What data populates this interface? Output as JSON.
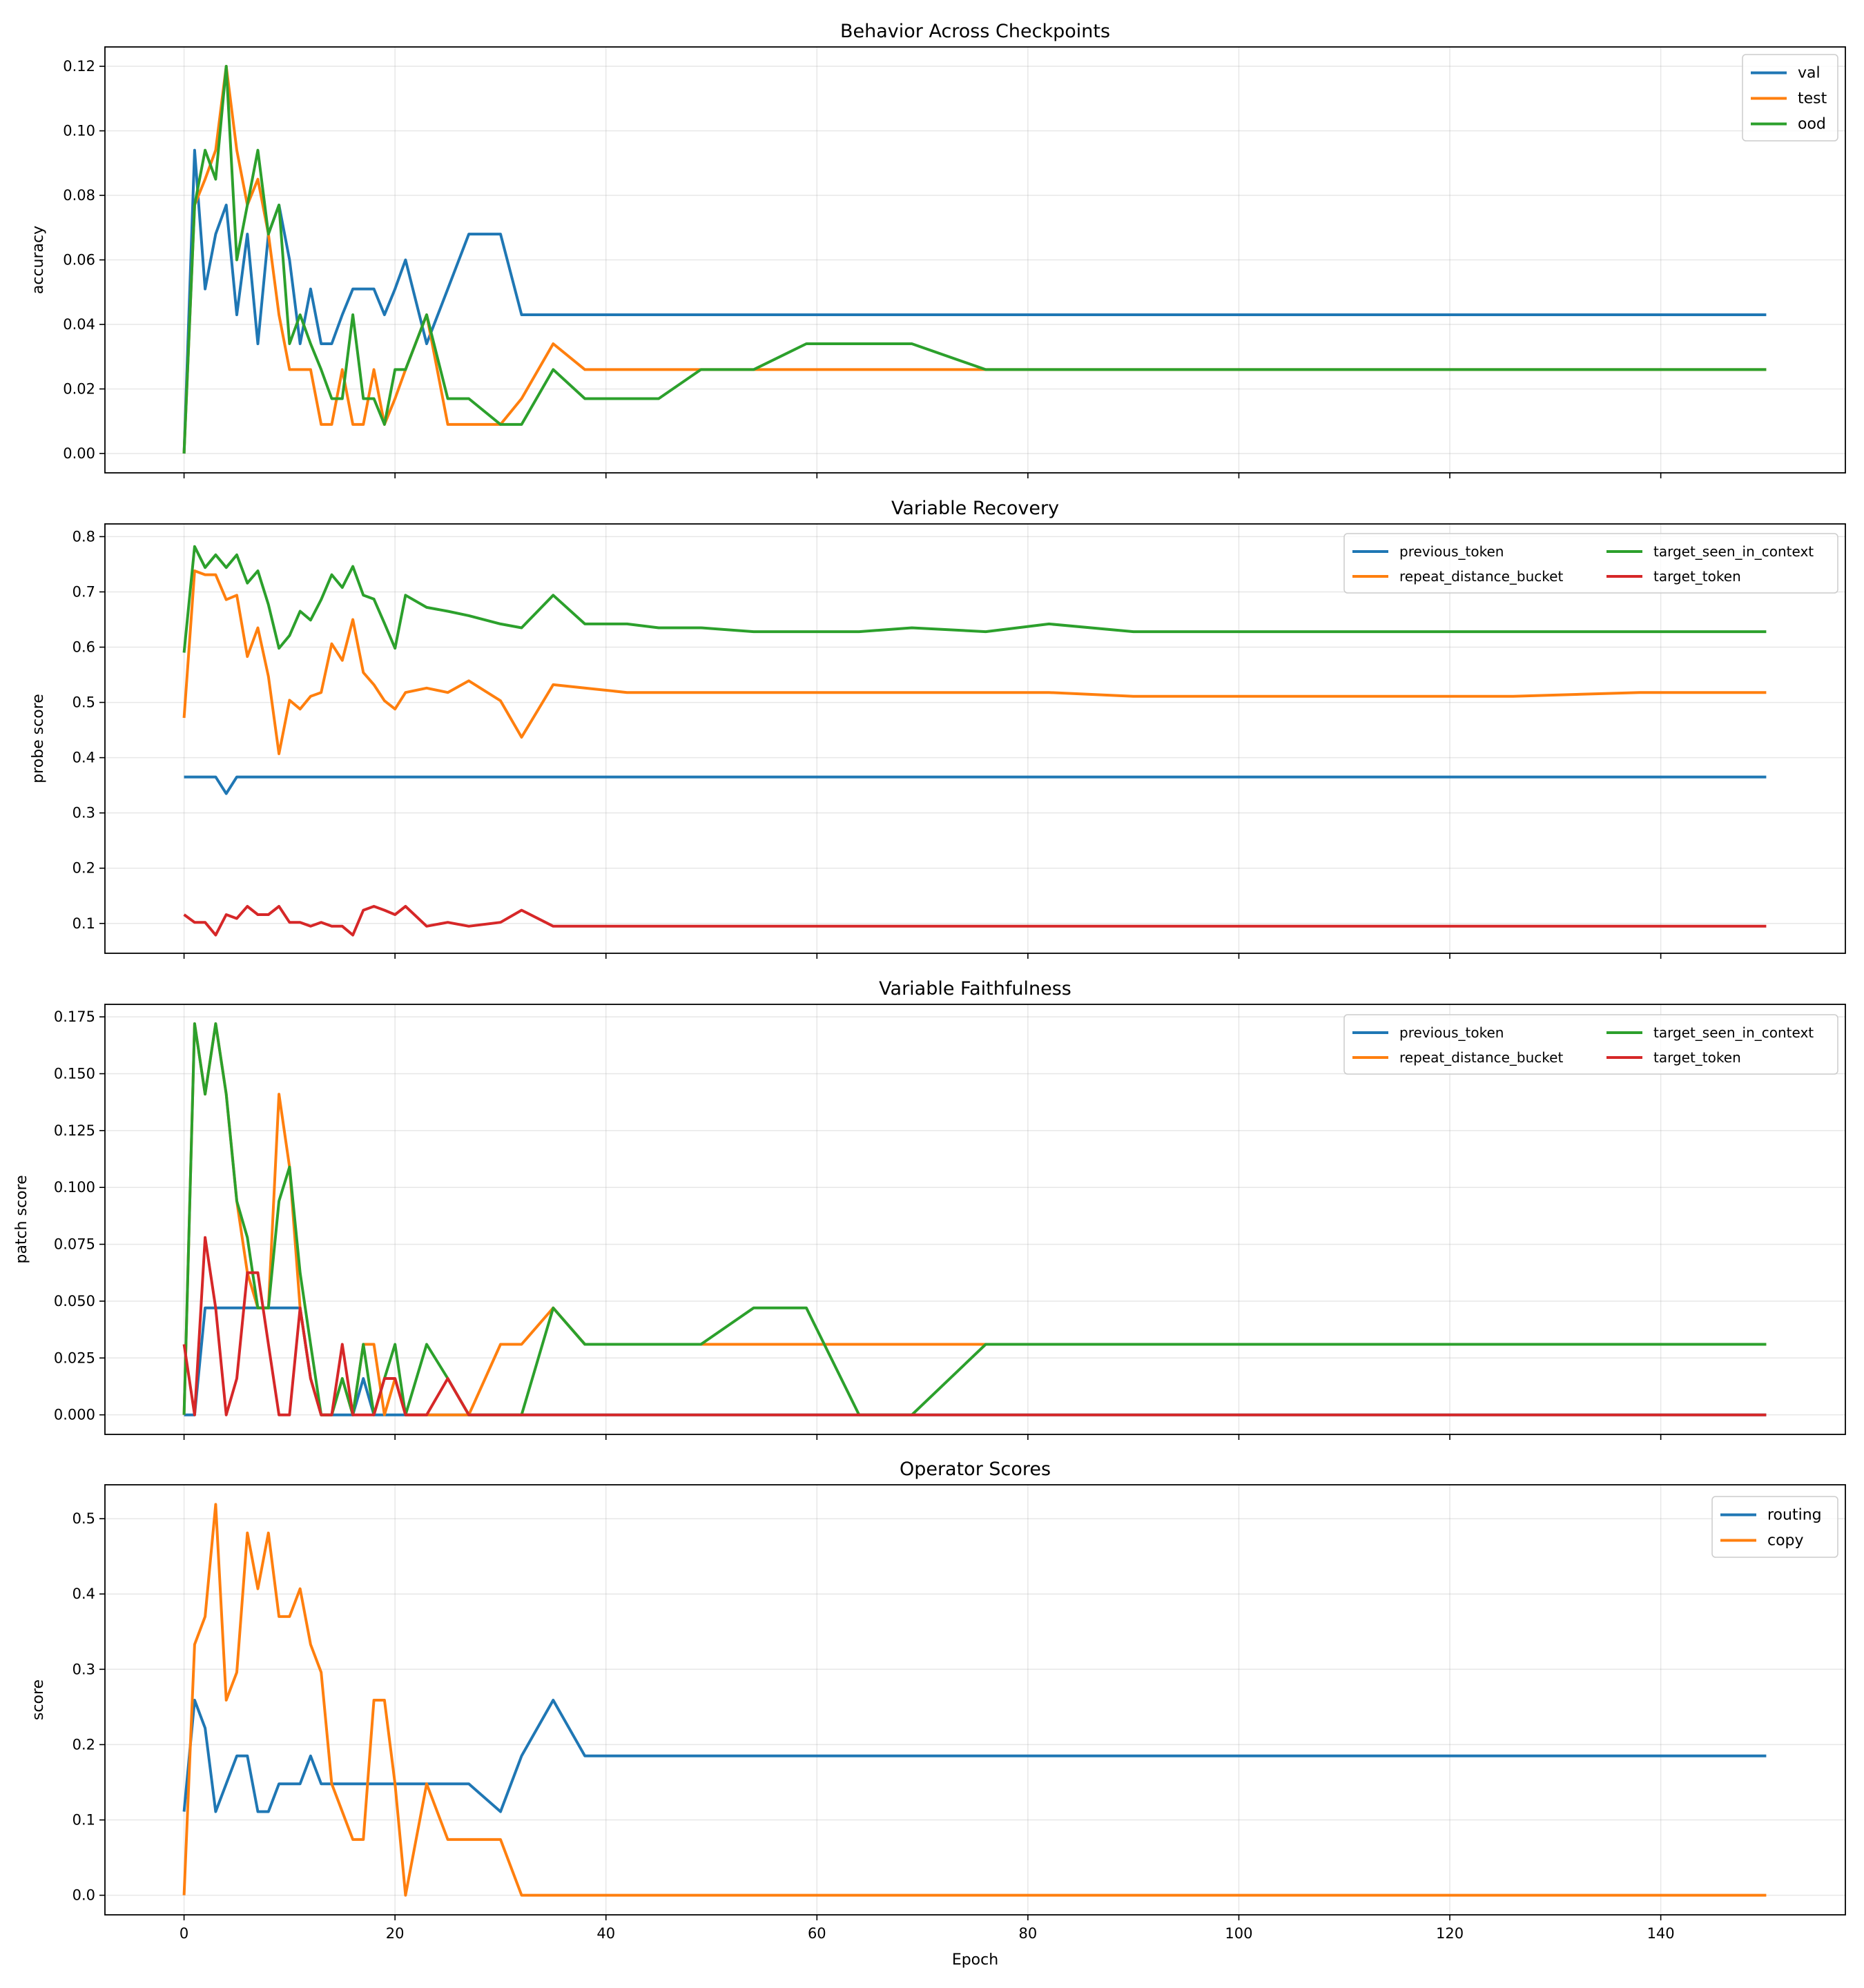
{
  "chart_data": [
    {
      "type": "line",
      "title": "Behavior Across Checkpoints",
      "xlabel": "",
      "ylabel": "accuracy",
      "ylim": [
        -0.006,
        0.126
      ],
      "yticks": [
        "0.00",
        "0.02",
        "0.04",
        "0.06",
        "0.08",
        "0.10",
        "0.12"
      ],
      "ytick_values": [
        0,
        0.02,
        0.04,
        0.06,
        0.08,
        0.1,
        0.12
      ],
      "legend": "top-right",
      "legend_columns": 1,
      "grid": true,
      "series": [
        {
          "name": "val",
          "color": "#1f77b4",
          "values": [
            0,
            0.094,
            0.051,
            0.068,
            0.077,
            0.043,
            0.068,
            0.034,
            0.068,
            0.077,
            0.06,
            0.034,
            0.051,
            0.034,
            0.034,
            0.043,
            0.051,
            0.051,
            0.051,
            0.043,
            0.051,
            0.06,
            0.034,
            0.051,
            0.068,
            0.068,
            0.043,
            0.043,
            0.043,
            0.043,
            0.043,
            0.043,
            0.043,
            0.043,
            0.043,
            0.043,
            0.043,
            0.043,
            0.043,
            0.043,
            0.043,
            0.043,
            0.043,
            0.043
          ]
        },
        {
          "name": "test",
          "color": "#ff7f0e",
          "values": [
            0,
            0.077,
            0.085,
            0.094,
            0.12,
            0.094,
            0.077,
            0.085,
            0.068,
            0.043,
            0.026,
            0.026,
            0.026,
            0.009,
            0.009,
            0.026,
            0.009,
            0.009,
            0.026,
            0.009,
            0.017,
            0.026,
            0.043,
            0.009,
            0.009,
            0.009,
            0.017,
            0.034,
            0.026,
            0.026,
            0.026,
            0.026,
            0.026,
            0.026,
            0.026,
            0.026,
            0.026,
            0.026,
            0.026,
            0.026,
            0.026,
            0.026,
            0.026,
            0.026
          ]
        },
        {
          "name": "ood",
          "color": "#2ca02c",
          "values": [
            0,
            0.077,
            0.094,
            0.085,
            0.12,
            0.06,
            0.077,
            0.094,
            0.068,
            0.077,
            0.034,
            0.043,
            0.034,
            0.026,
            0.017,
            0.017,
            0.043,
            0.017,
            0.017,
            0.009,
            0.026,
            0.026,
            0.043,
            0.017,
            0.017,
            0.009,
            0.009,
            0.026,
            0.017,
            0.017,
            0.017,
            0.026,
            0.026,
            0.034,
            0.034,
            0.034,
            0.026,
            0.026,
            0.026,
            0.026,
            0.026,
            0.026,
            0.026,
            0.026
          ]
        }
      ]
    },
    {
      "type": "line",
      "title": "Variable Recovery",
      "xlabel": "",
      "ylabel": "probe score",
      "ylim": [
        0.046,
        0.823
      ],
      "yticks": [
        "0.1",
        "0.2",
        "0.3",
        "0.4",
        "0.5",
        "0.6",
        "0.7",
        "0.8"
      ],
      "ytick_values": [
        0.1,
        0.2,
        0.3,
        0.4,
        0.5,
        0.6,
        0.7,
        0.8
      ],
      "legend": "top-right",
      "legend_columns": 2,
      "grid": true,
      "series": [
        {
          "name": "previous_token",
          "color": "#1f77b4",
          "values": [
            0.365,
            0.365,
            0.365,
            0.365,
            0.335,
            0.365,
            0.365,
            0.365,
            0.365,
            0.365,
            0.365,
            0.365,
            0.365,
            0.365,
            0.365,
            0.365,
            0.365,
            0.365,
            0.365,
            0.365,
            0.365,
            0.365,
            0.365,
            0.365,
            0.365,
            0.365,
            0.365,
            0.365,
            0.365,
            0.365,
            0.365,
            0.365,
            0.365,
            0.365,
            0.365,
            0.365,
            0.365,
            0.365,
            0.365,
            0.365,
            0.365,
            0.365,
            0.365,
            0.365
          ]
        },
        {
          "name": "repeat_distance_bucket",
          "color": "#ff7f0e",
          "values": [
            0.472,
            0.738,
            0.731,
            0.731,
            0.686,
            0.694,
            0.583,
            0.635,
            0.547,
            0.407,
            0.504,
            0.488,
            0.511,
            0.518,
            0.606,
            0.576,
            0.65,
            0.554,
            0.532,
            0.503,
            0.488,
            0.518,
            0.526,
            0.518,
            0.539,
            0.503,
            0.437,
            0.532,
            0.526,
            0.518,
            0.518,
            0.518,
            0.518,
            0.518,
            0.518,
            0.518,
            0.518,
            0.518,
            0.511,
            0.511,
            0.511,
            0.511,
            0.518,
            0.518
          ]
        },
        {
          "name": "target_seen_in_context",
          "color": "#2ca02c",
          "values": [
            0.59,
            0.782,
            0.744,
            0.767,
            0.744,
            0.767,
            0.716,
            0.738,
            0.677,
            0.598,
            0.621,
            0.665,
            0.649,
            0.686,
            0.731,
            0.708,
            0.746,
            0.694,
            0.687,
            0.643,
            0.598,
            0.694,
            0.672,
            0.665,
            0.657,
            0.642,
            0.635,
            0.694,
            0.642,
            0.642,
            0.635,
            0.635,
            0.628,
            0.628,
            0.628,
            0.635,
            0.628,
            0.642,
            0.628,
            0.628,
            0.628,
            0.628,
            0.628,
            0.628
          ]
        },
        {
          "name": "target_token",
          "color": "#d62728",
          "values": [
            0.116,
            0.102,
            0.102,
            0.079,
            0.116,
            0.109,
            0.131,
            0.116,
            0.116,
            0.131,
            0.102,
            0.102,
            0.095,
            0.102,
            0.095,
            0.095,
            0.079,
            0.124,
            0.131,
            0.124,
            0.116,
            0.131,
            0.095,
            0.102,
            0.095,
            0.102,
            0.124,
            0.095,
            0.095,
            0.095,
            0.095,
            0.095,
            0.095,
            0.095,
            0.095,
            0.095,
            0.095,
            0.095,
            0.095,
            0.095,
            0.095,
            0.095,
            0.095,
            0.095
          ]
        }
      ]
    },
    {
      "type": "line",
      "title": "Variable Faithfulness",
      "xlabel": "",
      "ylabel": "patch score",
      "ylim": [
        -0.0086,
        0.1805
      ],
      "yticks": [
        "0.000",
        "0.025",
        "0.050",
        "0.075",
        "0.100",
        "0.125",
        "0.150",
        "0.175"
      ],
      "ytick_values": [
        0,
        0.025,
        0.05,
        0.075,
        0.1,
        0.125,
        0.15,
        0.175
      ],
      "legend": "top-right",
      "legend_columns": 2,
      "grid": true,
      "series": [
        {
          "name": "previous_token",
          "color": "#1f77b4",
          "values": [
            0,
            0,
            0.047,
            0.047,
            0.047,
            0.047,
            0.047,
            0.047,
            0.047,
            0.047,
            0.047,
            0.047,
            0.016,
            0,
            0,
            0,
            0,
            0.016,
            0,
            0,
            0,
            0,
            0,
            0,
            0,
            0,
            0,
            0,
            0,
            0,
            0,
            0,
            0,
            0,
            0,
            0,
            0,
            0,
            0,
            0,
            0,
            0,
            0,
            0
          ]
        },
        {
          "name": "repeat_distance_bucket",
          "color": "#ff7f0e",
          "values": [
            0,
            0.172,
            0.141,
            0.172,
            0.141,
            0.094,
            0.0625,
            0.047,
            0.047,
            0.141,
            0.109,
            0.047,
            0.016,
            0,
            0,
            0.016,
            0,
            0.031,
            0.031,
            0,
            0.016,
            0,
            0,
            0,
            0,
            0.031,
            0.031,
            0.047,
            0.031,
            0.031,
            0.031,
            0.031,
            0.031,
            0.031,
            0.031,
            0.031,
            0.031,
            0.031,
            0.031,
            0.031,
            0.031,
            0.031,
            0.031,
            0.031
          ]
        },
        {
          "name": "target_seen_in_context",
          "color": "#2ca02c",
          "values": [
            0,
            0.172,
            0.141,
            0.172,
            0.141,
            0.094,
            0.078,
            0.047,
            0.047,
            0.094,
            0.109,
            0.0625,
            0.031,
            0,
            0,
            0.016,
            0,
            0.031,
            0,
            0.016,
            0.031,
            0,
            0.031,
            0.016,
            0,
            0,
            0,
            0.047,
            0.031,
            0.031,
            0.031,
            0.031,
            0.047,
            0.047,
            0,
            0,
            0.031,
            0.031,
            0.031,
            0.031,
            0.031,
            0.031,
            0.031,
            0.031
          ]
        },
        {
          "name": "target_token",
          "color": "#d62728",
          "values": [
            0.031,
            0,
            0.078,
            0.047,
            0,
            0.016,
            0.0625,
            0.0625,
            0.031,
            0,
            0,
            0.047,
            0.016,
            0,
            0,
            0.031,
            0,
            0,
            0,
            0.016,
            0.016,
            0,
            0,
            0.016,
            0,
            0,
            0,
            0,
            0,
            0,
            0,
            0,
            0,
            0,
            0,
            0,
            0,
            0,
            0,
            0,
            0,
            0,
            0,
            0
          ]
        }
      ]
    },
    {
      "type": "line",
      "title": "Operator Scores",
      "xlabel": "Epoch",
      "ylabel": "score",
      "ylim": [
        -0.026,
        0.545
      ],
      "yticks": [
        "0.0",
        "0.1",
        "0.2",
        "0.3",
        "0.4",
        "0.5"
      ],
      "ytick_values": [
        0,
        0.1,
        0.2,
        0.3,
        0.4,
        0.5
      ],
      "legend": "top-right",
      "legend_columns": 1,
      "grid": true,
      "series": [
        {
          "name": "routing",
          "color": "#1f77b4",
          "values": [
            0.111,
            0.259,
            0.222,
            0.111,
            0.148,
            0.185,
            0.185,
            0.111,
            0.111,
            0.148,
            0.148,
            0.148,
            0.185,
            0.148,
            0.148,
            0.148,
            0.148,
            0.148,
            0.148,
            0.148,
            0.148,
            0.148,
            0.148,
            0.148,
            0.148,
            0.111,
            0.185,
            0.259,
            0.185,
            0.185,
            0.185,
            0.185,
            0.185,
            0.185,
            0.185,
            0.185,
            0.185,
            0.185,
            0.185,
            0.185,
            0.185,
            0.185,
            0.185,
            0.185
          ]
        },
        {
          "name": "copy",
          "color": "#ff7f0e",
          "values": [
            0,
            0.333,
            0.37,
            0.519,
            0.259,
            0.296,
            0.481,
            0.407,
            0.481,
            0.37,
            0.37,
            0.407,
            0.333,
            0.296,
            0.148,
            0.111,
            0.074,
            0.074,
            0.259,
            0.259,
            0.148,
            0,
            0.148,
            0.074,
            0.074,
            0.074,
            0,
            0,
            0,
            0,
            0,
            0,
            0,
            0,
            0,
            0,
            0,
            0,
            0,
            0,
            0,
            0,
            0,
            0
          ]
        }
      ]
    }
  ],
  "x": [
    0,
    1,
    2,
    3,
    4,
    5,
    6,
    7,
    8,
    9,
    10,
    11,
    12,
    13,
    14,
    15,
    16,
    17,
    18,
    19,
    20,
    21,
    23,
    25,
    27,
    30,
    32,
    35,
    38,
    42,
    45,
    49,
    54,
    59,
    64,
    69,
    76,
    82,
    90,
    100,
    113,
    126,
    138,
    150
  ],
  "xlim": [
    -7.5,
    157.5
  ],
  "xticks": [
    "0",
    "20",
    "40",
    "60",
    "80",
    "100",
    "120",
    "140"
  ],
  "xtick_values": [
    0,
    20,
    40,
    60,
    80,
    100,
    120,
    140
  ]
}
